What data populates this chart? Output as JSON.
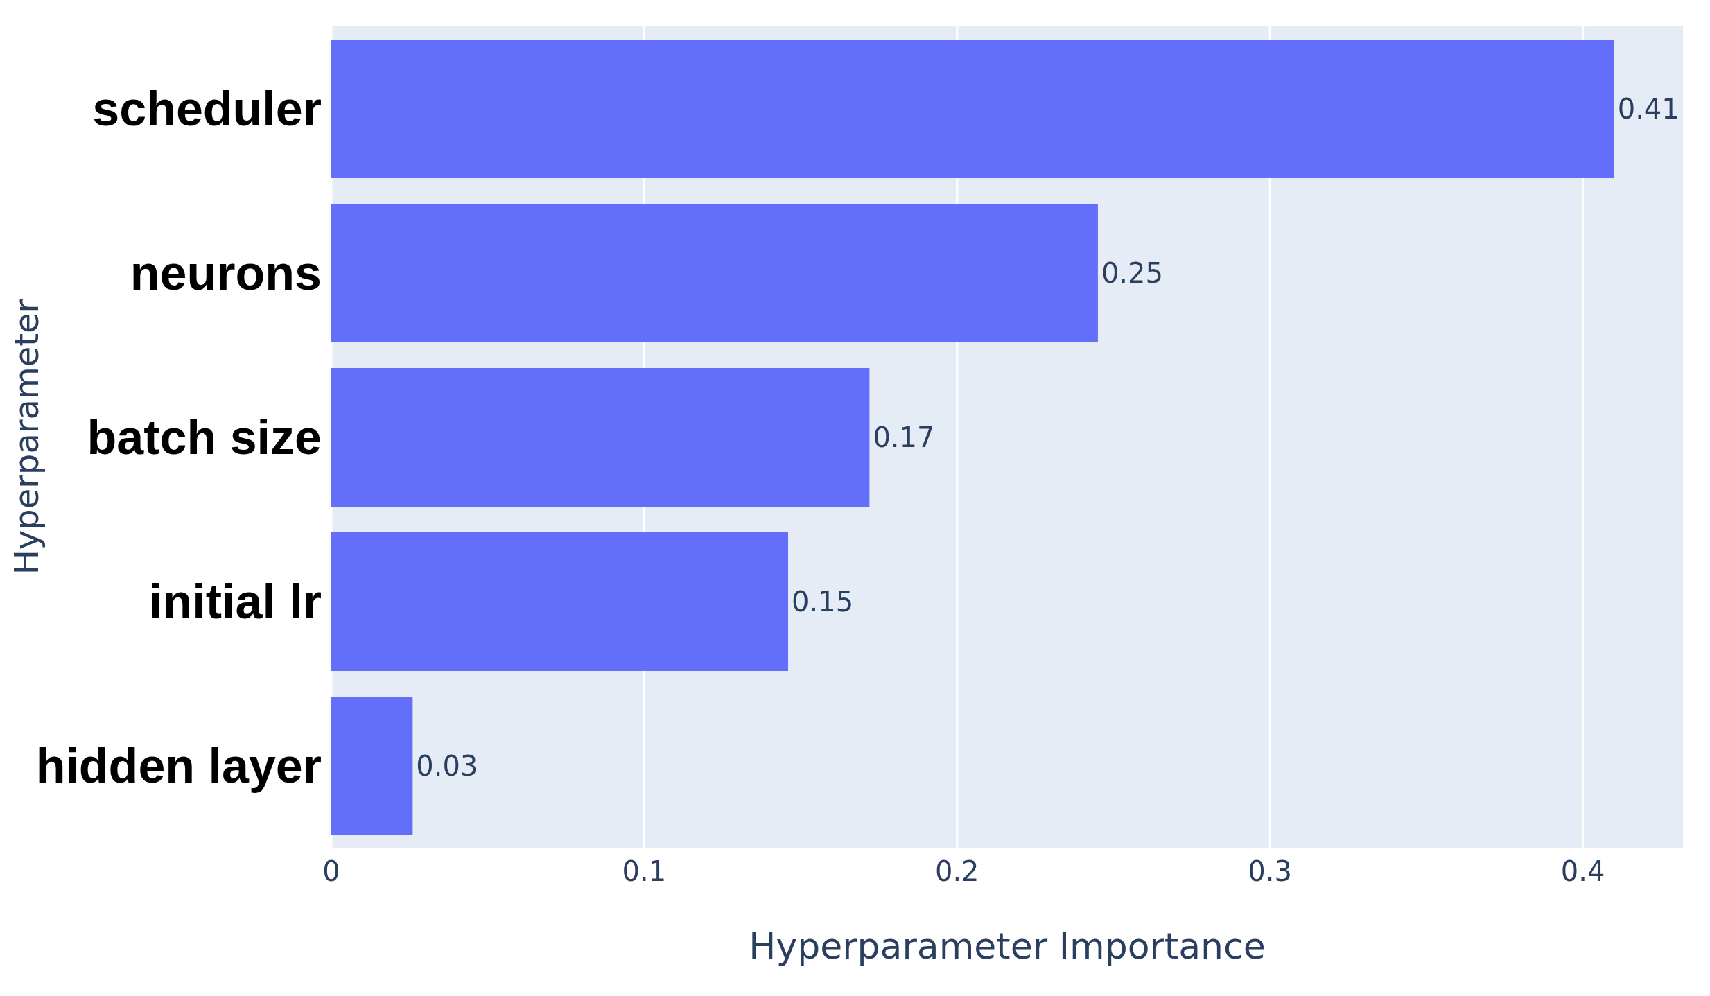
{
  "chart_data": {
    "type": "bar",
    "orientation": "horizontal",
    "xlabel": "Hyperparameter Importance",
    "ylabel": "Hyperparameter",
    "categories": [
      "scheduler",
      "neurons",
      "batch size",
      "initial lr",
      "hidden layer"
    ],
    "values": [
      0.41,
      0.245,
      0.172,
      0.146,
      0.026
    ],
    "value_labels": [
      "0.41",
      "0.25",
      "0.17",
      "0.15",
      "0.03"
    ],
    "color": "#636efa",
    "xlim": [
      0,
      0.432
    ],
    "xticks": [
      0,
      0.1,
      0.2,
      0.3,
      0.4
    ],
    "grid": "x",
    "legend": false
  }
}
